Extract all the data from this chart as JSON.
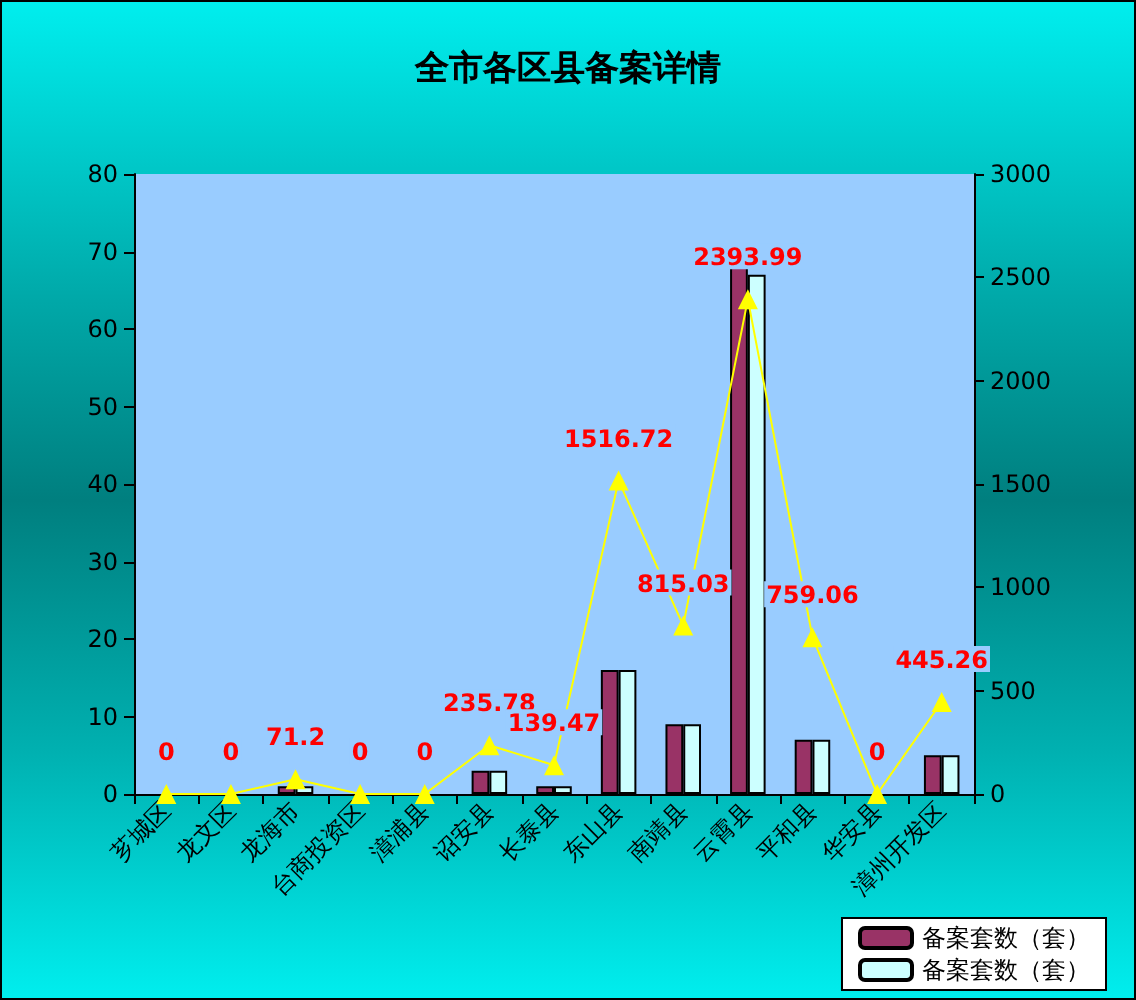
{
  "chart_data": {
    "type": "bar",
    "title": "全市各区县备案详情",
    "categories": [
      "芗城区",
      "龙文区",
      "龙海市",
      "台商投资区",
      "漳浦县",
      "诏安县",
      "长泰县",
      "东山县",
      "南靖县",
      "云霄县",
      "平和县",
      "华安县",
      "漳州开发区"
    ],
    "series": [
      {
        "name": "备案套数（套）",
        "color": "#993366",
        "values": [
          0,
          0,
          1,
          0,
          0,
          3,
          1,
          16,
          9,
          68,
          7,
          0,
          5
        ]
      },
      {
        "name": "备案套数（套）",
        "color": "#ccffff",
        "values": [
          0,
          0,
          1,
          0,
          0,
          3,
          1,
          16,
          9,
          67,
          7,
          0,
          5
        ]
      },
      {
        "type": "line",
        "axis": "y2",
        "color": "#ffff00",
        "values": [
          0,
          0,
          71.2,
          0,
          0,
          235.78,
          139.47,
          1516.72,
          815.03,
          2393.99,
          759.06,
          0,
          445.26
        ],
        "value_labels": [
          "0",
          "0",
          "71.2",
          "0",
          "0",
          "235.78",
          "139.47",
          "1516.72",
          "815.03",
          "2393.99",
          "759.06",
          "0",
          "445.26"
        ]
      }
    ],
    "ylim": [
      0,
      80
    ],
    "yticks": [
      0,
      10,
      20,
      30,
      40,
      50,
      60,
      70,
      80
    ],
    "y2lim": [
      0,
      3000
    ],
    "y2ticks": [
      0,
      500,
      1000,
      1500,
      2000,
      2500,
      3000
    ],
    "marker": "triangle",
    "legend": "bottom right"
  }
}
